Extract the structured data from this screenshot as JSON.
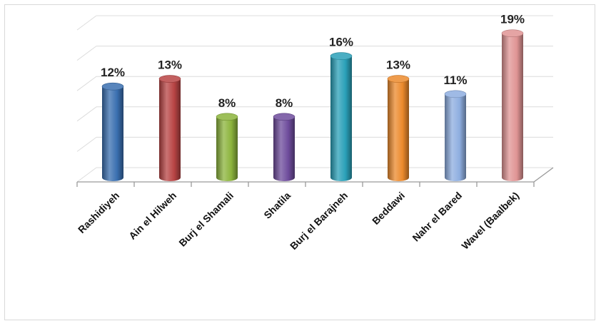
{
  "chart_data": {
    "type": "bar",
    "title": "",
    "xlabel": "",
    "ylabel": "",
    "ylim": [
      0,
      20
    ],
    "grid": true,
    "legend": "none",
    "categories": [
      "Rashidiyeh",
      "Ain el Hilweh",
      "Burj el Shamali",
      "Shatila",
      "Burj el Barajneh",
      "Beddawi",
      "Nahr el Bared",
      "Wavel (Baalbek)"
    ],
    "values": [
      12,
      13,
      8,
      8,
      16,
      13,
      11,
      19
    ],
    "value_labels": [
      "12%",
      "13%",
      "8%",
      "8%",
      "16%",
      "13%",
      "11%",
      "19%"
    ],
    "colors": [
      "#3a6fb0",
      "#b84444",
      "#8cb43c",
      "#6e4c9c",
      "#2aa0b8",
      "#ec8a2c",
      "#8eaee0",
      "#e09494"
    ]
  }
}
